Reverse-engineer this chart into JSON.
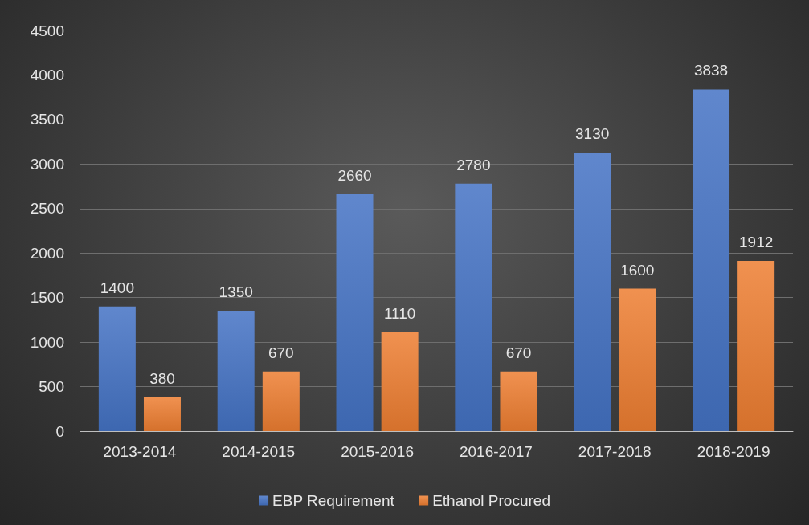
{
  "chart_data": {
    "type": "bar",
    "categories": [
      "2013-2014",
      "2014-2015",
      "2015-2016",
      "2016-2017",
      "2017-2018",
      "2018-2019"
    ],
    "series": [
      {
        "name": "EBP Requirement",
        "color": "#4472c4",
        "values": [
          1400,
          1350,
          2660,
          2780,
          3130,
          3838
        ]
      },
      {
        "name": "Ethanol Procured",
        "color": "#ed7d31",
        "values": [
          380,
          670,
          1110,
          670,
          1600,
          1912
        ]
      }
    ],
    "ylim": [
      0,
      4500
    ],
    "yticks": [
      0,
      500,
      1000,
      1500,
      2000,
      2500,
      3000,
      3500,
      4000,
      4500
    ],
    "grid": "y",
    "legend": "bottom",
    "data_labels": true
  }
}
